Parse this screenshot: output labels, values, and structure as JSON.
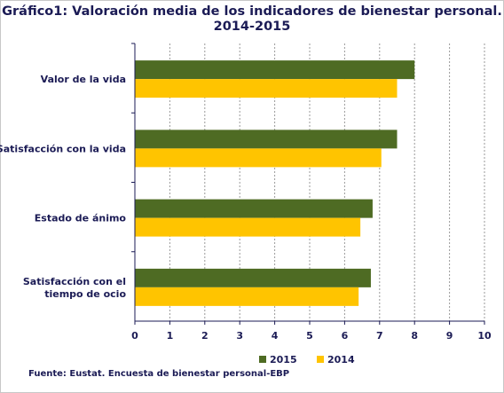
{
  "title_line1": "Gráfico1: Valoración media de los indicadores de bienestar personal.",
  "title_line2": "2014-2015",
  "source": "Fuente: Eustat. Encuesta de bienestar personal-EBP",
  "colors": {
    "s2015": "#4e6b23",
    "s2014": "#ffc400",
    "grid": "#9a9a9a",
    "axis": "#1b1b55"
  },
  "chart_data": {
    "type": "bar",
    "orientation": "horizontal",
    "categories": [
      [
        "Valor de la vida"
      ],
      [
        "Satisfacción con la vida"
      ],
      [
        "Estado de ánimo"
      ],
      [
        "Satisfacción con el",
        "tiempo de ocio"
      ]
    ],
    "series": [
      {
        "name": "2015",
        "values": [
          8.0,
          7.5,
          6.8,
          6.75
        ]
      },
      {
        "name": "2014",
        "values": [
          7.5,
          7.05,
          6.45,
          6.4
        ]
      }
    ],
    "xlim": [
      0,
      10
    ],
    "xticks": [
      "0",
      "1",
      "2",
      "3",
      "4",
      "5",
      "6",
      "7",
      "8",
      "9",
      "10"
    ],
    "grid": true,
    "legend_position": "bottom"
  }
}
